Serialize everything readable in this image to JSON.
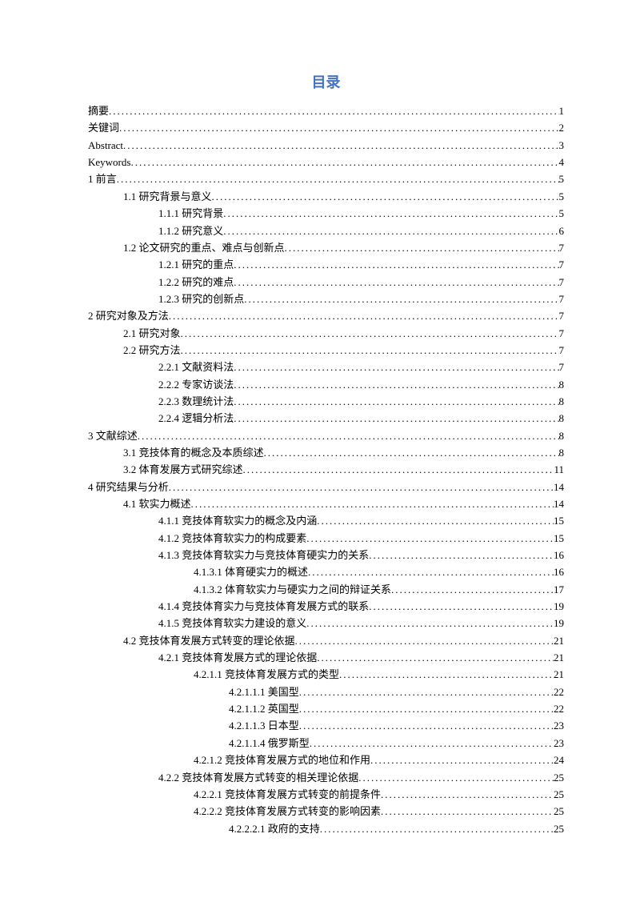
{
  "title": "目录",
  "title_color": "#4472c4",
  "entries": [
    {
      "level": 0,
      "label": "摘要",
      "page": "1"
    },
    {
      "level": 0,
      "label": "关键词",
      "page": "2"
    },
    {
      "level": 0,
      "label": "Abstract",
      "page": "3"
    },
    {
      "level": 0,
      "label": "Keywords",
      "page": "4"
    },
    {
      "level": 0,
      "label": "1 前言",
      "page": "5"
    },
    {
      "level": 1,
      "label": "1.1 研究背景与意义",
      "page": "5"
    },
    {
      "level": 2,
      "label": "1.1.1 研究背景",
      "page": "5"
    },
    {
      "level": 2,
      "label": "1.1.2 研究意义",
      "page": "6"
    },
    {
      "level": 1,
      "label": "1.2 论文研究的重点、难点与创新点",
      "page": "7"
    },
    {
      "level": 2,
      "label": "1.2.1 研究的重点",
      "page": "7"
    },
    {
      "level": 2,
      "label": "1.2.2 研究的难点",
      "page": "7"
    },
    {
      "level": 2,
      "label": "1.2.3 研究的创新点",
      "page": "7"
    },
    {
      "level": 0,
      "label": "2 研究对象及方法",
      "page": "7"
    },
    {
      "level": 1,
      "label": "2.1 研究对象",
      "page": "7"
    },
    {
      "level": 1,
      "label": "2.2 研究方法",
      "page": "7"
    },
    {
      "level": 2,
      "label": "2.2.1 文献资料法",
      "page": "7"
    },
    {
      "level": 2,
      "label": "2.2.2 专家访谈法",
      "page": "8"
    },
    {
      "level": 2,
      "label": "2.2.3 数理统计法",
      "page": "8"
    },
    {
      "level": 2,
      "label": "2.2.4 逻辑分析法",
      "page": "8"
    },
    {
      "level": 0,
      "label": "3 文献综述",
      "page": "8"
    },
    {
      "level": 1,
      "label": "3.1 竞技体育的概念及本质综述",
      "page": "8"
    },
    {
      "level": 1,
      "label": "3.2 体育发展方式研究综述",
      "page": "11"
    },
    {
      "level": 0,
      "label": "4 研究结果与分析",
      "page": "14"
    },
    {
      "level": 1,
      "label": "4.1 软实力概述",
      "page": "14"
    },
    {
      "level": 2,
      "label": "4.1.1 竞技体育软实力的概念及内涵",
      "page": "15"
    },
    {
      "level": 2,
      "label": "4.1.2 竞技体育软实力的构成要素",
      "page": "15"
    },
    {
      "level": 2,
      "label": "4.1.3 竞技体育软实力与竞技体育硬实力的关系",
      "page": "16"
    },
    {
      "level": 3,
      "label": "4.1.3.1 体育硬实力的概述",
      "page": "16"
    },
    {
      "level": 3,
      "label": "4.1.3.2 体育软实力与硬实力之间的辩证关系",
      "page": "17"
    },
    {
      "level": 2,
      "label": "4.1.4 竞技体育实力与竞技体育发展方式的联系",
      "page": "19"
    },
    {
      "level": 2,
      "label": "4.1.5 竞技体育软实力建设的意义",
      "page": "19"
    },
    {
      "level": 1,
      "label": "4.2 竞技体育发展方式转变的理论依据",
      "page": "21"
    },
    {
      "level": 2,
      "label": "4.2.1 竞技体育发展方式的理论依据",
      "page": "21"
    },
    {
      "level": 3,
      "label": "4.2.1.1 竞技体育发展方式的类型",
      "page": "21"
    },
    {
      "level": 4,
      "label": "4.2.1.1.1 美国型",
      "page": "22"
    },
    {
      "level": 4,
      "label": "4.2.1.1.2 英国型",
      "page": "22"
    },
    {
      "level": 4,
      "label": "4.2.1.1.3 日本型",
      "page": "23"
    },
    {
      "level": 4,
      "label": "4.2.1.1.4 俄罗斯型",
      "page": "23"
    },
    {
      "level": 3,
      "label": "4.2.1.2 竞技体育发展方式的地位和作用",
      "page": "24"
    },
    {
      "level": 2,
      "label": "4.2.2 竞技体育发展方式转变的相关理论依据",
      "page": "25"
    },
    {
      "level": 3,
      "label": "4.2.2.1 竞技体育发展方式转变的前提条件",
      "page": "25"
    },
    {
      "level": 3,
      "label": "4.2.2.2 竞技体育发展方式转变的影响因素",
      "page": "25"
    },
    {
      "level": 4,
      "label": "4.2.2.2.1 政府的支持",
      "page": "25"
    }
  ]
}
